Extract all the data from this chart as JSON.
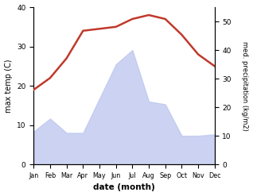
{
  "months": [
    "Jan",
    "Feb",
    "Mar",
    "Apr",
    "May",
    "Jun",
    "Jul",
    "Aug",
    "Sep",
    "Oct",
    "Nov",
    "Dec"
  ],
  "temp": [
    19,
    22,
    27,
    34,
    34.5,
    35,
    37,
    38,
    37,
    33,
    28,
    25
  ],
  "precip": [
    11.5,
    16,
    11,
    11,
    23,
    35,
    40,
    22,
    21,
    10,
    10,
    10.5
  ],
  "temp_color": "#c0392b",
  "precip_fill_color": "#bbc5ee",
  "xlabel": "date (month)",
  "ylabel_left": "max temp (C)",
  "ylabel_right": "med. precipitation (kg/m2)",
  "ylim_left": [
    0,
    40
  ],
  "ylim_right": [
    0,
    55
  ],
  "yticks_left": [
    0,
    10,
    20,
    30,
    40
  ],
  "yticks_right": [
    0,
    10,
    20,
    30,
    40,
    50
  ],
  "background_color": "#ffffff",
  "line_width": 1.8,
  "fill_alpha": 0.75
}
